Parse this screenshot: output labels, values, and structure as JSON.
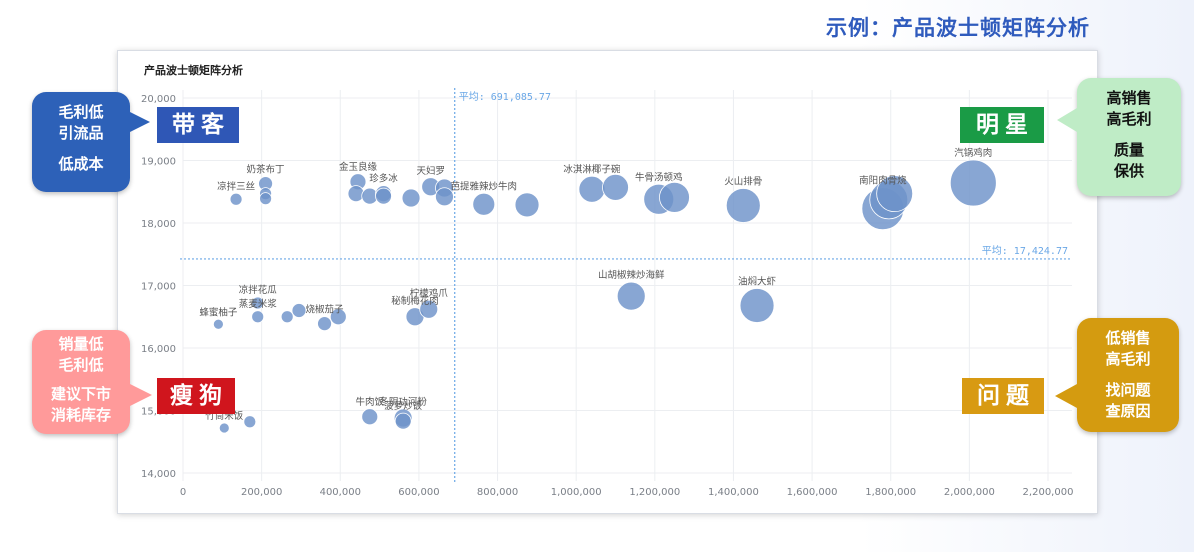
{
  "header": {
    "title": "示例：产品波士顿矩阵分析"
  },
  "chart_data": {
    "type": "scatter",
    "title": "产品波士顿矩阵分析",
    "xlim": [
      0,
      2200000
    ],
    "ylim": [
      14000,
      20000
    ],
    "x_ticks": [
      0,
      200000,
      400000,
      600000,
      800000,
      1000000,
      1200000,
      1400000,
      1600000,
      1800000,
      2000000,
      2200000
    ],
    "x_tick_labels": [
      "0",
      "200,000",
      "400,000",
      "600,000",
      "800,000",
      "1,000,000",
      "1,200,000",
      "1,400,000",
      "1,600,000",
      "1,800,000",
      "2,000,000",
      "2,200,000"
    ],
    "y_ticks": [
      14000,
      15000,
      16000,
      17000,
      18000,
      19000,
      20000
    ],
    "y_tick_labels": [
      "14,000",
      "15,000",
      "16,000",
      "17,000",
      "18,000",
      "19,000",
      "20,000"
    ],
    "grid": true,
    "avg_x": {
      "value": 691085.77,
      "label": "平均: 691,085.77"
    },
    "avg_y": {
      "value": 17424.77,
      "label": "平均: 17,424.77"
    },
    "bubble_color": "#6e93c9",
    "points": [
      {
        "label": "凉拌三丝",
        "x": 135000,
        "y": 18380,
        "size": 6
      },
      {
        "label": "奶茶布丁",
        "x": 210000,
        "y": 18630,
        "size": 7
      },
      {
        "label": "",
        "x": 210000,
        "y": 18470,
        "size": 6
      },
      {
        "label": "",
        "x": 210000,
        "y": 18390,
        "size": 6
      },
      {
        "label": "金玉良缘",
        "x": 445000,
        "y": 18660,
        "size": 8
      },
      {
        "label": "",
        "x": 440000,
        "y": 18470,
        "size": 8
      },
      {
        "label": "",
        "x": 475000,
        "y": 18430,
        "size": 8
      },
      {
        "label": "珍多冰",
        "x": 510000,
        "y": 18470,
        "size": 8
      },
      {
        "label": "",
        "x": 510000,
        "y": 18430,
        "size": 8
      },
      {
        "label": "",
        "x": 580000,
        "y": 18400,
        "size": 9
      },
      {
        "label": "天妇罗",
        "x": 630000,
        "y": 18580,
        "size": 9
      },
      {
        "label": "",
        "x": 665000,
        "y": 18560,
        "size": 9
      },
      {
        "label": "",
        "x": 665000,
        "y": 18420,
        "size": 9
      },
      {
        "label": "芭提雅辣炒牛肉",
        "x": 765000,
        "y": 18300,
        "size": 11
      },
      {
        "label": "",
        "x": 875000,
        "y": 18290,
        "size": 12
      },
      {
        "label": "冰淇淋椰子碗",
        "x": 1040000,
        "y": 18540,
        "size": 13
      },
      {
        "label": "",
        "x": 1100000,
        "y": 18570,
        "size": 13
      },
      {
        "label": "牛骨汤顿鸡",
        "x": 1210000,
        "y": 18380,
        "size": 15
      },
      {
        "label": "",
        "x": 1250000,
        "y": 18410,
        "size": 15
      },
      {
        "label": "火山排骨",
        "x": 1425000,
        "y": 18280,
        "size": 17
      },
      {
        "label": "南阳肉骨烧",
        "x": 1780000,
        "y": 18230,
        "size": 21
      },
      {
        "label": "",
        "x": 1795000,
        "y": 18370,
        "size": 19
      },
      {
        "label": "",
        "x": 1810000,
        "y": 18470,
        "size": 18
      },
      {
        "label": "汽锅鸡肉",
        "x": 2010000,
        "y": 18640,
        "size": 23
      },
      {
        "label": "蜂蜜柚子",
        "x": 90000,
        "y": 16380,
        "size": 5
      },
      {
        "label": "凉拌花瓜",
        "x": 190000,
        "y": 16720,
        "size": 6
      },
      {
        "label": "蒸麦米浆",
        "x": 190000,
        "y": 16500,
        "size": 6
      },
      {
        "label": "",
        "x": 265000,
        "y": 16500,
        "size": 6
      },
      {
        "label": "",
        "x": 295000,
        "y": 16600,
        "size": 7
      },
      {
        "label": "烧椒茄子",
        "x": 360000,
        "y": 16390,
        "size": 7
      },
      {
        "label": "",
        "x": 395000,
        "y": 16500,
        "size": 8
      },
      {
        "label": "秘制梅花肉",
        "x": 590000,
        "y": 16500,
        "size": 9
      },
      {
        "label": "柠檬鸡爪",
        "x": 625000,
        "y": 16620,
        "size": 9
      },
      {
        "label": "山胡椒辣炒海鲜",
        "x": 1140000,
        "y": 16830,
        "size": 14
      },
      {
        "label": "油焖大虾",
        "x": 1460000,
        "y": 16680,
        "size": 17
      },
      {
        "label": "竹筒米饭",
        "x": 105000,
        "y": 14720,
        "size": 5
      },
      {
        "label": "",
        "x": 170000,
        "y": 14820,
        "size": 6
      },
      {
        "label": "牛肉饭",
        "x": 475000,
        "y": 14900,
        "size": 8
      },
      {
        "label": "冬阴功河粉",
        "x": 560000,
        "y": 14880,
        "size": 9
      },
      {
        "label": "菠萝炒饭",
        "x": 560000,
        "y": 14830,
        "size": 8
      }
    ]
  },
  "quadrants": {
    "top_left": {
      "label": "带客",
      "color": "#2f57b6"
    },
    "top_right": {
      "label": "明星",
      "color": "#1a9b46"
    },
    "bottom_left": {
      "label": "瘦狗",
      "color": "#d0151d"
    },
    "bottom_right": {
      "label": "问题",
      "color": "#d89a12"
    }
  },
  "callouts": {
    "top_left": {
      "lines": [
        "毛利低",
        "引流品"
      ],
      "sub": [
        "低成本"
      ],
      "color": "#2d61b8"
    },
    "top_right": {
      "lines": [
        "高销售",
        "高毛利"
      ],
      "sub": [
        "质量",
        "保供"
      ],
      "color": "#bfecc6"
    },
    "bottom_left": {
      "lines": [
        "销量低",
        "毛利低"
      ],
      "sub": [
        "建议下市",
        "消耗库存"
      ],
      "color": "#ff9a9a"
    },
    "bottom_right": {
      "lines": [
        "低销售",
        "高毛利"
      ],
      "sub": [
        "找问题",
        "查原因"
      ],
      "color": "#d49b10"
    }
  }
}
